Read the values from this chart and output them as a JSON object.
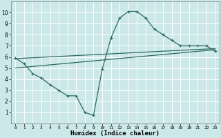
{
  "title": "",
  "xlabel": "Humidex (Indice chaleur)",
  "background_color": "#cce8e8",
  "grid_color": "#ffffff",
  "line_color": "#2a6a60",
  "xlim": [
    -0.5,
    23.5
  ],
  "ylim": [
    0,
    11
  ],
  "x_ticks": [
    0,
    1,
    2,
    3,
    4,
    5,
    6,
    7,
    8,
    9,
    10,
    11,
    12,
    13,
    14,
    15,
    16,
    17,
    18,
    19,
    20,
    21,
    22,
    23
  ],
  "y_ticks": [
    1,
    2,
    3,
    4,
    5,
    6,
    7,
    8,
    9,
    10
  ],
  "line1_x": [
    0,
    1,
    2,
    3,
    4,
    5,
    6,
    7,
    8,
    9,
    10,
    11,
    12,
    13,
    14,
    15,
    16,
    17,
    18,
    19,
    20,
    21,
    22,
    23
  ],
  "line1_y": [
    5.9,
    5.4,
    4.5,
    4.1,
    3.5,
    3.0,
    2.5,
    2.5,
    1.0,
    0.75,
    4.9,
    7.7,
    9.5,
    10.1,
    10.1,
    9.5,
    8.5,
    8.0,
    7.5,
    7.0,
    7.0,
    7.0,
    7.0,
    6.5
  ],
  "line2_x": [
    0,
    23
  ],
  "line2_y": [
    5.85,
    6.75
  ],
  "line3_x": [
    0,
    23
  ],
  "line3_y": [
    5.0,
    6.65
  ]
}
